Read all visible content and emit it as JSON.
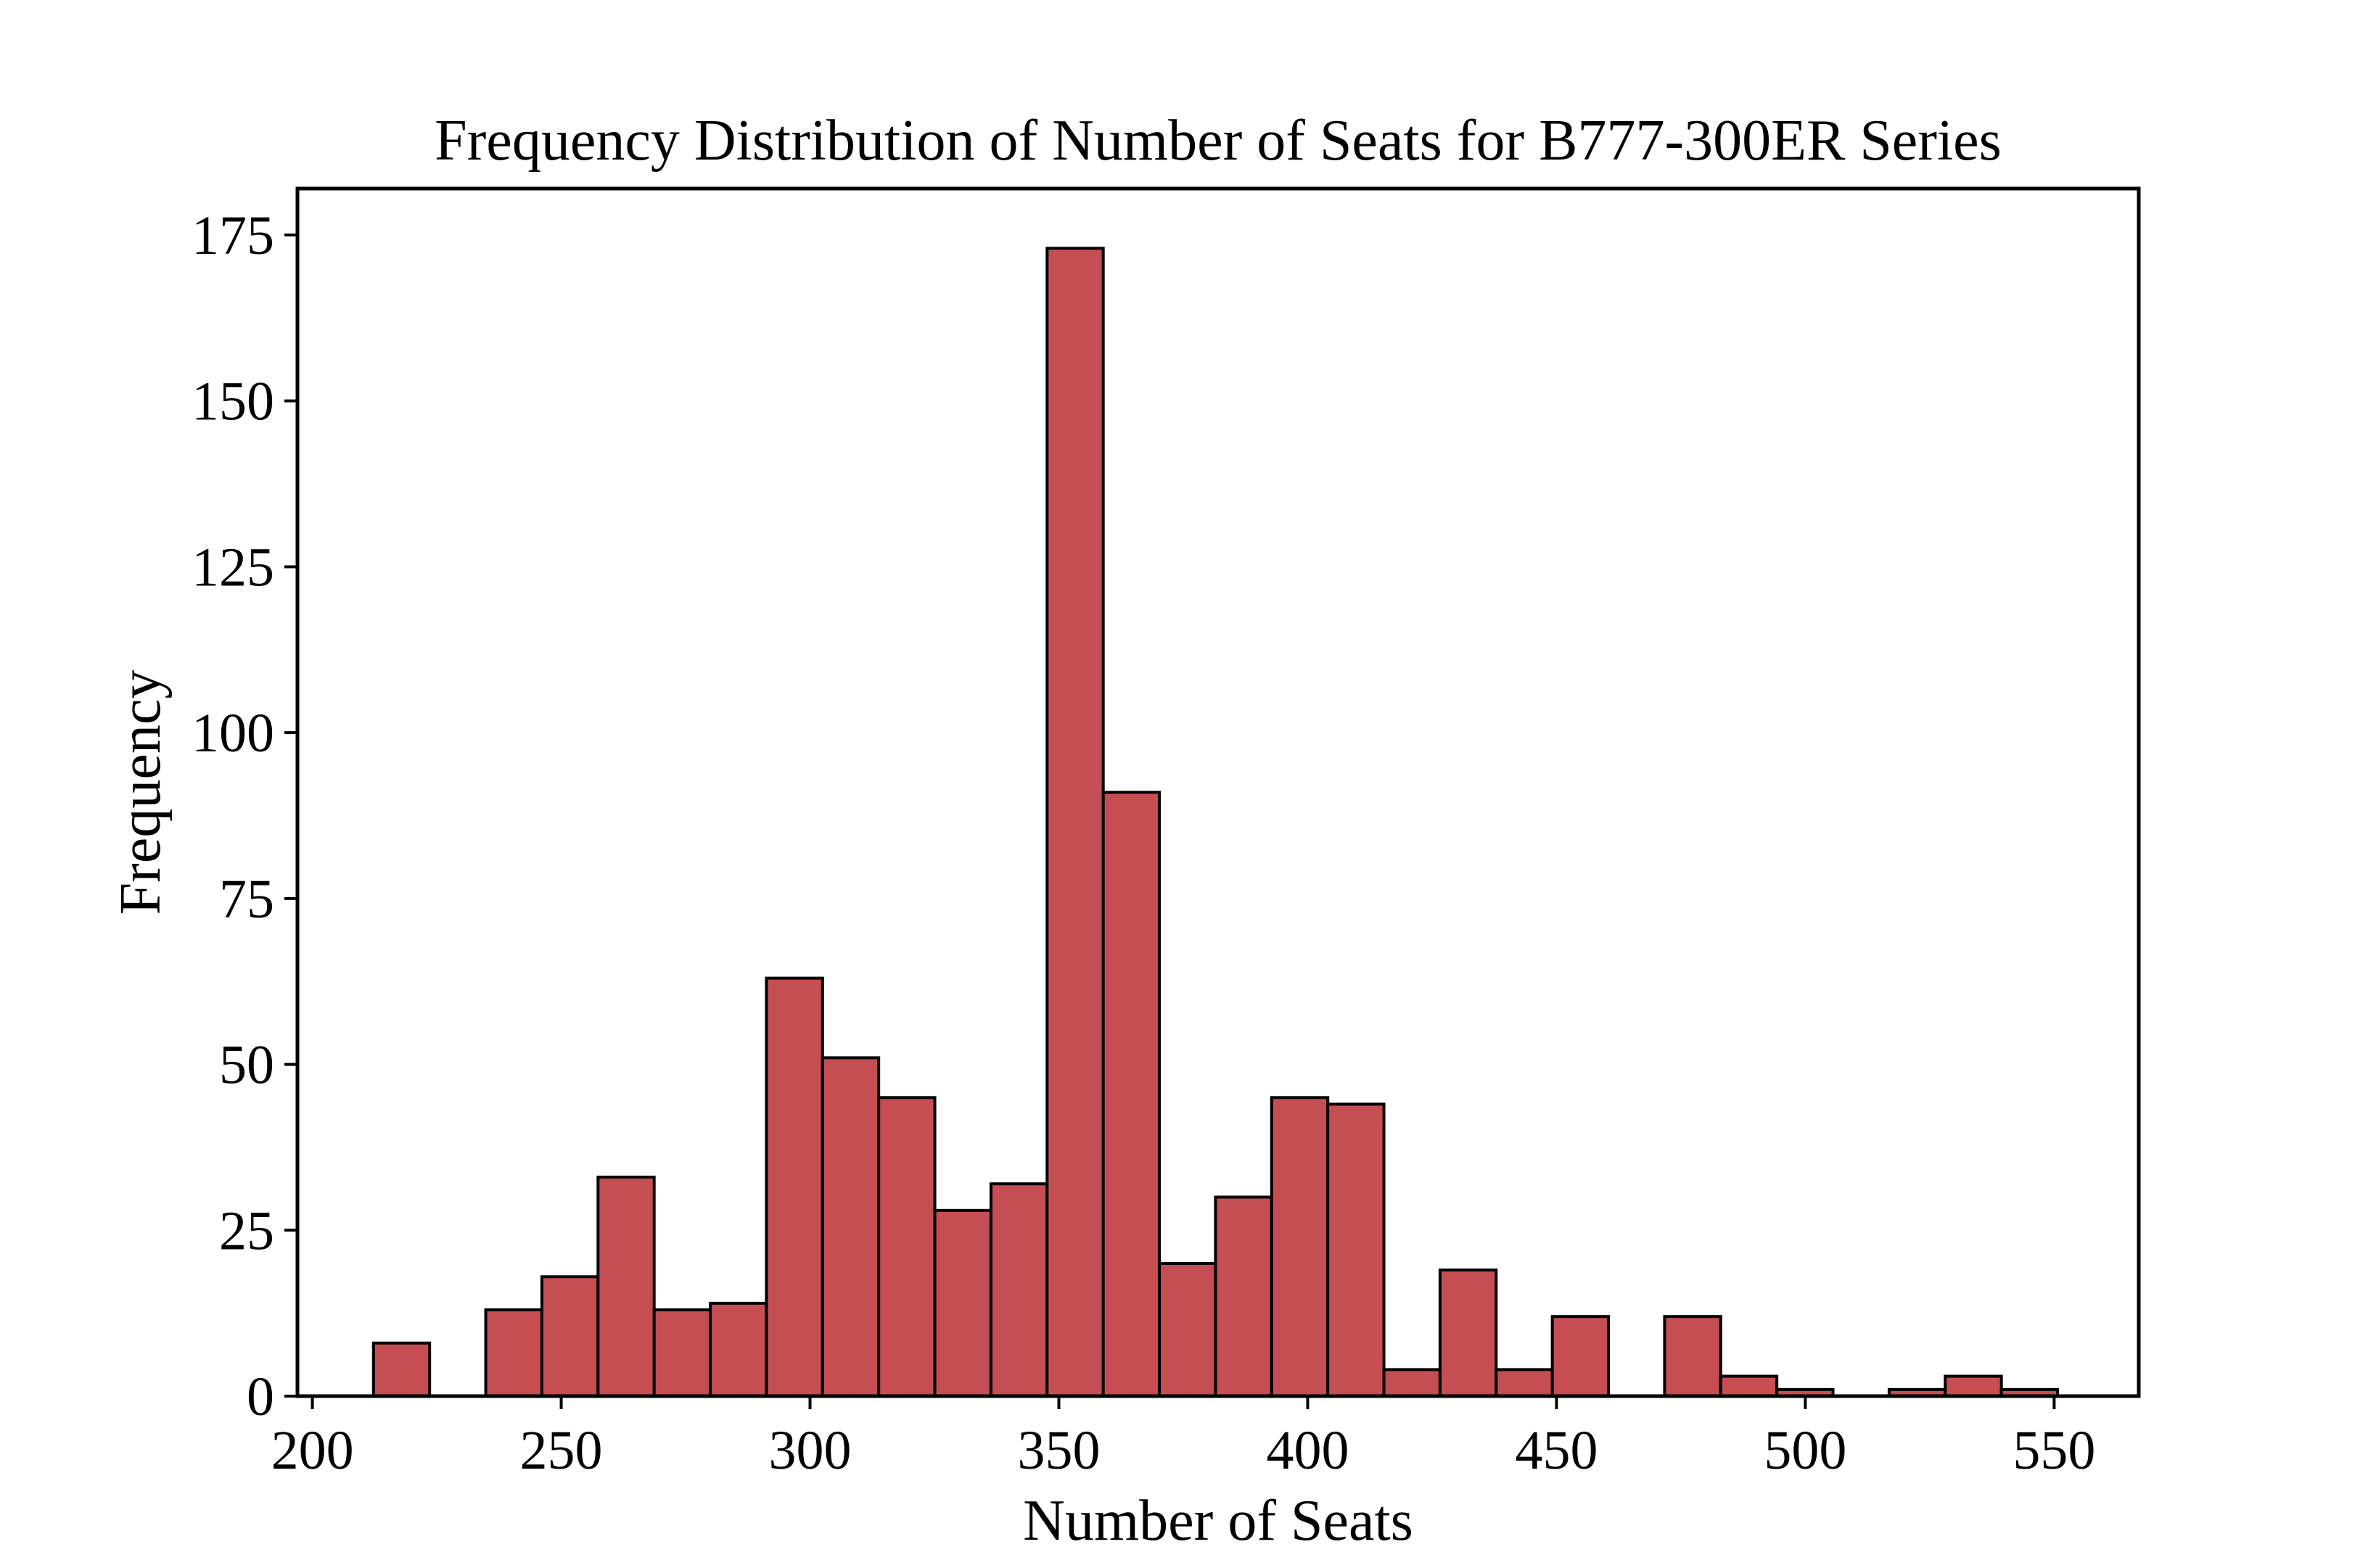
{
  "chart_data": {
    "type": "bar",
    "title": "Frequency Distribution of Number of Seats for B777-300ER Series",
    "xlabel": "Number of Seats",
    "ylabel": "Frequency",
    "xlim": [
      197,
      567
    ],
    "ylim": [
      0,
      182
    ],
    "xticks": [
      200,
      250,
      300,
      350,
      400,
      450,
      500,
      550
    ],
    "xtick_labels": [
      "200",
      "250",
      "300",
      "350",
      "400",
      "450",
      "500",
      "550"
    ],
    "yticks": [
      0,
      25,
      50,
      75,
      100,
      125,
      150,
      175
    ],
    "ytick_labels": [
      "0",
      "25",
      "50",
      "75",
      "100",
      "125",
      "150",
      "175"
    ],
    "bin_start": 201,
    "bin_width": 11.28,
    "values": [
      0,
      8,
      0,
      13,
      18,
      33,
      13,
      14,
      63,
      51,
      45,
      28,
      32,
      173,
      91,
      20,
      30,
      45,
      44,
      4,
      19,
      4,
      12,
      0,
      12,
      3,
      1,
      0,
      1,
      3,
      1
    ],
    "grid": false,
    "bar_color": "#c44e52",
    "edge_color": "#000000"
  }
}
